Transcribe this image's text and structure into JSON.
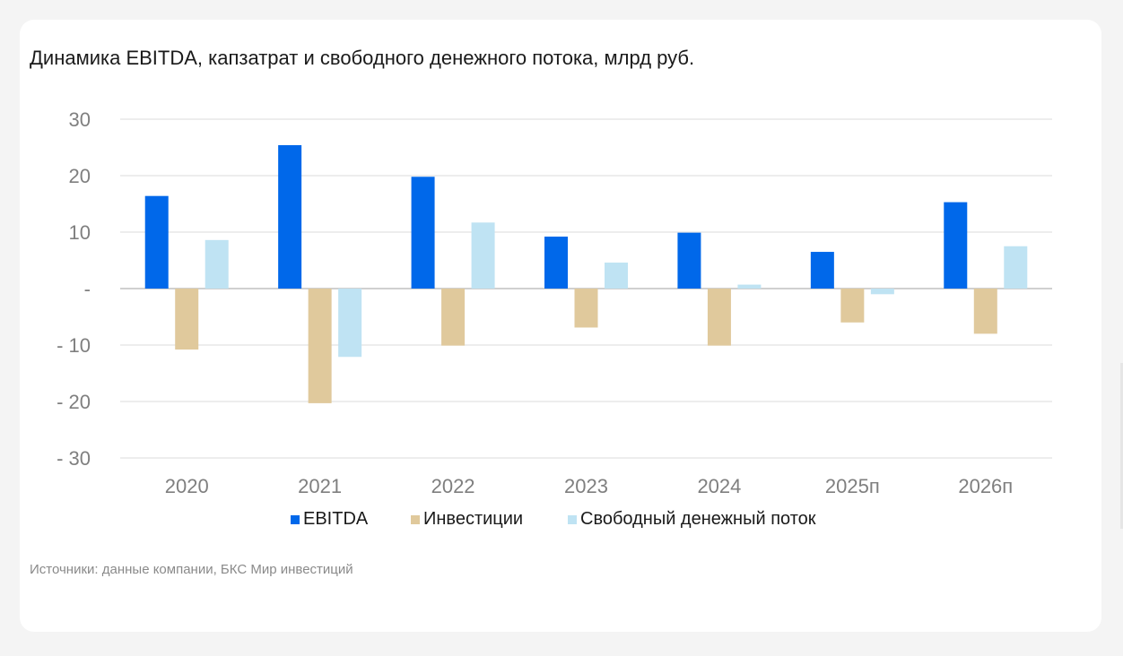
{
  "card": {
    "title": "Динамика EBITDA, капзатрат и свободного денежного потока, млрд руб.",
    "source": "Источники: данные компании, БКС Мир инвестиций"
  },
  "chart_data": {
    "type": "bar",
    "title": "Динамика EBITDA, капзатрат и свободного денежного потока, млрд руб.",
    "xlabel": "",
    "ylabel": "",
    "categories": [
      "2020",
      "2021",
      "2022",
      "2023",
      "2024",
      "2025п",
      "2026п"
    ],
    "series": [
      {
        "name": "EBITDA",
        "color": "#0068ea",
        "values": [
          16.4,
          25.4,
          19.8,
          9.2,
          9.9,
          6.5,
          15.3
        ]
      },
      {
        "name": "Инвестиции",
        "color": "#e0c99c",
        "values": [
          -10.8,
          -20.3,
          -10.1,
          -6.9,
          -10.1,
          -6.0,
          -8.0
        ]
      },
      {
        "name": "Свободный денежный поток",
        "color": "#bfe3f3",
        "values": [
          8.6,
          -12.1,
          11.7,
          4.6,
          0.7,
          -1.0,
          7.5
        ]
      }
    ],
    "ylim": [
      -30,
      30
    ],
    "yticks": [
      30,
      20,
      10,
      0,
      -10,
      -20,
      -30
    ],
    "ytick_labels": [
      "30",
      "20",
      "10",
      "-",
      "- 10",
      "- 20",
      "- 30"
    ],
    "grid": true,
    "legend_position": "bottom-center"
  }
}
